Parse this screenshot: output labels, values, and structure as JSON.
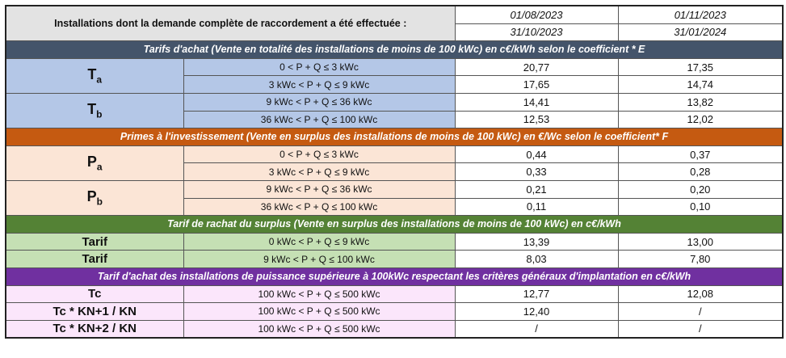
{
  "header": {
    "title": "Installations dont la demande complète de raccordement a été effectuée :",
    "periods": [
      {
        "from": "01/08/2023",
        "to": "31/10/2023"
      },
      {
        "from": "01/11/2023",
        "to": "31/01/2024"
      }
    ]
  },
  "colors": {
    "section1": "#44546a",
    "section2": "#c55a11",
    "section3": "#548235",
    "section4": "#7030a0"
  },
  "sections": [
    {
      "title": "Tarifs d'achat (Vente en totalité des installations de moins de 100 kWc) en c€/kWh selon le coefficient * E",
      "tone": "blue",
      "groups": [
        {
          "label": "T",
          "sub": "a",
          "rows": [
            {
              "range": "0 < P + Q ≤ 3 kWc",
              "v1": "20,77",
              "v2": "17,35"
            },
            {
              "range": "3  kWc < P + Q ≤ 9 kWc",
              "v1": "17,65",
              "v2": "14,74"
            }
          ]
        },
        {
          "label": "T",
          "sub": "b",
          "rows": [
            {
              "range": "9 kWc < P + Q ≤ 36 kWc",
              "v1": "14,41",
              "v2": "13,82"
            },
            {
              "range": "36 kWc < P + Q ≤ 100 kWc",
              "v1": "12,53",
              "v2": "12,02"
            }
          ]
        }
      ]
    },
    {
      "title": "Primes à l'investissement (Vente en surplus des installations de moins de 100 kWc) en €/Wc  selon le coefficient* F",
      "tone": "peach",
      "groups": [
        {
          "label": "P",
          "sub": "a",
          "rows": [
            {
              "range": "0 < P + Q ≤ 3 kWc",
              "v1": "0,44",
              "v2": "0,37"
            },
            {
              "range": "3  kWc < P + Q ≤ 9 kWc",
              "v1": "0,33",
              "v2": "0,28"
            }
          ]
        },
        {
          "label": "P",
          "sub": "b",
          "rows": [
            {
              "range": "9 kWc < P + Q ≤ 36 kWc",
              "v1": "0,21",
              "v2": "0,20"
            },
            {
              "range": "36 kWc < P + Q ≤ 100 kWc",
              "v1": "0,11",
              "v2": "0,10"
            }
          ]
        }
      ]
    },
    {
      "title": "Tarif de rachat du surplus (Vente en surplus des installations de moins de 100 kWc) en c€/kWh",
      "tone": "green",
      "groups": [
        {
          "label": "Tarif",
          "sub": "",
          "rows": [
            {
              "range": "0 kWc < P + Q ≤ 9 kWc",
              "v1": "13,39",
              "v2": "13,00"
            }
          ]
        },
        {
          "label": "Tarif",
          "sub": "",
          "rows": [
            {
              "range": "9 kWc < P + Q ≤ 100 kWc",
              "v1": "8,03",
              "v2": "7,80"
            }
          ]
        }
      ]
    },
    {
      "title": "Tarif d'achat des installations de puissance supérieure à 100kWc respectant les critères généraux d'implantation en c€/kWh",
      "tone": "pink",
      "groups": [
        {
          "label": "Tc",
          "sub": "",
          "rows": [
            {
              "range": "100 kWc < P + Q ≤ 500 kWc",
              "v1": "12,77",
              "v2": "12,08"
            }
          ]
        },
        {
          "label": "Tc * KN+1 / KN",
          "sub": "",
          "rows": [
            {
              "range": "100 kWc < P + Q ≤ 500 kWc",
              "v1": "12,40",
              "v2": "/"
            }
          ]
        },
        {
          "label": "Tc * KN+2 / KN",
          "sub": "",
          "rows": [
            {
              "range": "100 kWc < P + Q ≤ 500 kWc",
              "v1": "/",
              "v2": "/"
            }
          ]
        }
      ]
    }
  ]
}
